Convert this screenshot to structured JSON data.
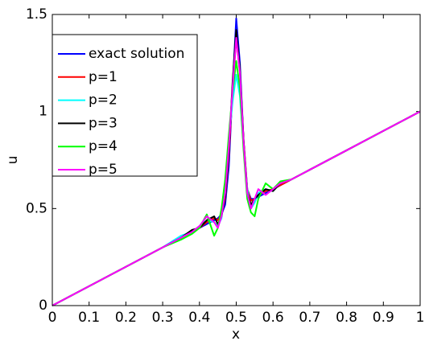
{
  "chart_data": {
    "type": "line",
    "xlabel": "x",
    "ylabel": "u",
    "x": [
      0,
      0.1,
      0.2,
      0.3,
      0.35,
      0.38,
      0.4,
      0.42,
      0.44,
      0.45,
      0.46,
      0.47,
      0.48,
      0.49,
      0.5,
      0.51,
      0.52,
      0.53,
      0.54,
      0.55,
      0.56,
      0.58,
      0.6,
      0.62,
      0.65,
      0.7,
      0.8,
      0.9,
      1
    ],
    "series": [
      {
        "name": "exact solution",
        "color": "#0000ff",
        "values": [
          0,
          0.1,
          0.2,
          0.3,
          0.35,
          0.38,
          0.4,
          0.42,
          0.44,
          0.45,
          0.47,
          0.52,
          0.72,
          1.12,
          1.48,
          1.25,
          0.85,
          0.6,
          0.55,
          0.55,
          0.56,
          0.58,
          0.6,
          0.62,
          0.65,
          0.7,
          0.8,
          0.9,
          1
        ]
      },
      {
        "name": "p=1",
        "color": "#ff0000",
        "values": [
          0,
          0.1,
          0.2,
          0.3,
          0.35,
          0.38,
          0.4,
          0.43,
          0.45,
          0.44,
          0.47,
          0.55,
          0.78,
          1.1,
          1.38,
          1.2,
          0.85,
          0.6,
          0.54,
          0.55,
          0.57,
          0.59,
          0.6,
          0.62,
          0.65,
          0.7,
          0.8,
          0.9,
          1
        ]
      },
      {
        "name": "p=2",
        "color": "#00ffff",
        "values": [
          0,
          0.1,
          0.2,
          0.3,
          0.36,
          0.38,
          0.41,
          0.44,
          0.43,
          0.41,
          0.45,
          0.6,
          0.85,
          1.05,
          1.19,
          1.08,
          0.82,
          0.6,
          0.5,
          0.53,
          0.58,
          0.6,
          0.59,
          0.63,
          0.65,
          0.7,
          0.8,
          0.9,
          1
        ]
      },
      {
        "name": "p=3",
        "color": "#000000",
        "values": [
          0,
          0.1,
          0.2,
          0.3,
          0.35,
          0.39,
          0.4,
          0.44,
          0.46,
          0.42,
          0.46,
          0.56,
          0.8,
          1.15,
          1.42,
          1.22,
          0.85,
          0.58,
          0.52,
          0.55,
          0.57,
          0.6,
          0.59,
          0.63,
          0.65,
          0.7,
          0.8,
          0.9,
          1
        ]
      },
      {
        "name": "p=4",
        "color": "#00ff00",
        "values": [
          0,
          0.1,
          0.2,
          0.3,
          0.34,
          0.37,
          0.4,
          0.47,
          0.36,
          0.4,
          0.5,
          0.65,
          0.88,
          1.1,
          1.26,
          1.12,
          0.8,
          0.55,
          0.48,
          0.46,
          0.55,
          0.63,
          0.6,
          0.64,
          0.65,
          0.7,
          0.8,
          0.9,
          1
        ]
      },
      {
        "name": "p=5",
        "color": "#ff00ff",
        "values": [
          0,
          0.1,
          0.2,
          0.3,
          0.35,
          0.38,
          0.41,
          0.46,
          0.43,
          0.4,
          0.46,
          0.58,
          0.82,
          1.12,
          1.38,
          1.2,
          0.84,
          0.58,
          0.5,
          0.55,
          0.6,
          0.57,
          0.6,
          0.63,
          0.65,
          0.7,
          0.8,
          0.9,
          1
        ]
      }
    ],
    "xlim": [
      0,
      1
    ],
    "ylim": [
      0,
      1.5
    ],
    "xticks": [
      0,
      0.1,
      0.2,
      0.3,
      0.4,
      0.5,
      0.6,
      0.7,
      0.8,
      0.9,
      1
    ],
    "yticks": [
      0,
      0.5,
      1,
      1.5
    ],
    "legend": "upper left"
  }
}
